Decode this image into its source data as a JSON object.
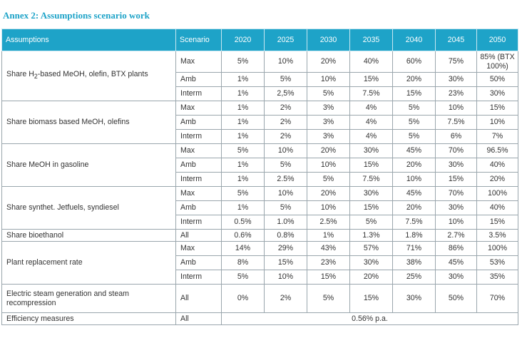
{
  "title": "Annex 2: Assumptions scenario work",
  "header": {
    "assumptions": "Assumptions",
    "scenario": "Scenario",
    "years": [
      "2020",
      "2025",
      "2030",
      "2035",
      "2040",
      "2045",
      "2050"
    ]
  },
  "groups": [
    {
      "label_html": "Share H<sub>2</sub>-based MeOH, olefin, BTX plants",
      "rows": [
        {
          "scenario": "Max",
          "values": [
            "5%",
            "10%",
            "20%",
            "40%",
            "60%",
            "75%",
            "85% (BTX 100%)"
          ]
        },
        {
          "scenario": "Amb",
          "values": [
            "1%",
            "5%",
            "10%",
            "15%",
            "20%",
            "30%",
            "50%"
          ]
        },
        {
          "scenario": "Interm",
          "values": [
            "1%",
            "2,5%",
            "5%",
            "7.5%",
            "15%",
            "23%",
            "30%"
          ]
        }
      ]
    },
    {
      "label_html": "Share biomass based MeOH, olefins",
      "rows": [
        {
          "scenario": "Max",
          "values": [
            "1%",
            "2%",
            "3%",
            "4%",
            "5%",
            "10%",
            "15%"
          ]
        },
        {
          "scenario": "Amb",
          "values": [
            "1%",
            "2%",
            "3%",
            "4%",
            "5%",
            "7.5%",
            "10%"
          ]
        },
        {
          "scenario": "Interm",
          "values": [
            "1%",
            "2%",
            "3%",
            "4%",
            "5%",
            "6%",
            "7%"
          ]
        }
      ]
    },
    {
      "label_html": "Share MeOH in gasoline",
      "rows": [
        {
          "scenario": "Max",
          "values": [
            "5%",
            "10%",
            "20%",
            "30%",
            "45%",
            "70%",
            "96.5%"
          ]
        },
        {
          "scenario": "Amb",
          "values": [
            "1%",
            "5%",
            "10%",
            "15%",
            "20%",
            "30%",
            "40%"
          ]
        },
        {
          "scenario": "Interm",
          "values": [
            "1%",
            "2.5%",
            "5%",
            "7.5%",
            "10%",
            "15%",
            "20%"
          ]
        }
      ]
    },
    {
      "label_html": "Share synthet. Jetfuels, syndiesel",
      "rows": [
        {
          "scenario": "Max",
          "values": [
            "5%",
            "10%",
            "20%",
            "30%",
            "45%",
            "70%",
            "100%"
          ]
        },
        {
          "scenario": "Amb",
          "values": [
            "1%",
            "5%",
            "10%",
            "15%",
            "20%",
            "30%",
            "40%"
          ]
        },
        {
          "scenario": "Interm",
          "values": [
            "0.5%",
            "1.0%",
            "2.5%",
            "5%",
            "7.5%",
            "10%",
            "15%"
          ]
        }
      ]
    },
    {
      "label_html": "Share bioethanol",
      "rows": [
        {
          "scenario": "All",
          "values": [
            "0.6%",
            "0.8%",
            "1%",
            "1.3%",
            "1.8%",
            "2.7%",
            "3.5%"
          ]
        }
      ]
    },
    {
      "label_html": "Plant replacement rate",
      "rows": [
        {
          "scenario": "Max",
          "values": [
            "14%",
            "29%",
            "43%",
            "57%",
            "71%",
            "86%",
            "100%"
          ]
        },
        {
          "scenario": "Amb",
          "values": [
            "8%",
            "15%",
            "23%",
            "30%",
            "38%",
            "45%",
            "53%"
          ]
        },
        {
          "scenario": "Interm",
          "values": [
            "5%",
            "10%",
            "15%",
            "20%",
            "25%",
            "30%",
            "35%"
          ]
        }
      ]
    },
    {
      "label_html": "Electric steam generation and steam recompression",
      "rows": [
        {
          "scenario": "All",
          "values": [
            "0%",
            "2%",
            "5%",
            "15%",
            "30%",
            "50%",
            "70%"
          ]
        }
      ]
    },
    {
      "label_html": "Efficiency measures",
      "rows": [
        {
          "scenario": "All",
          "merged": "0.56% p.a."
        }
      ]
    }
  ]
}
